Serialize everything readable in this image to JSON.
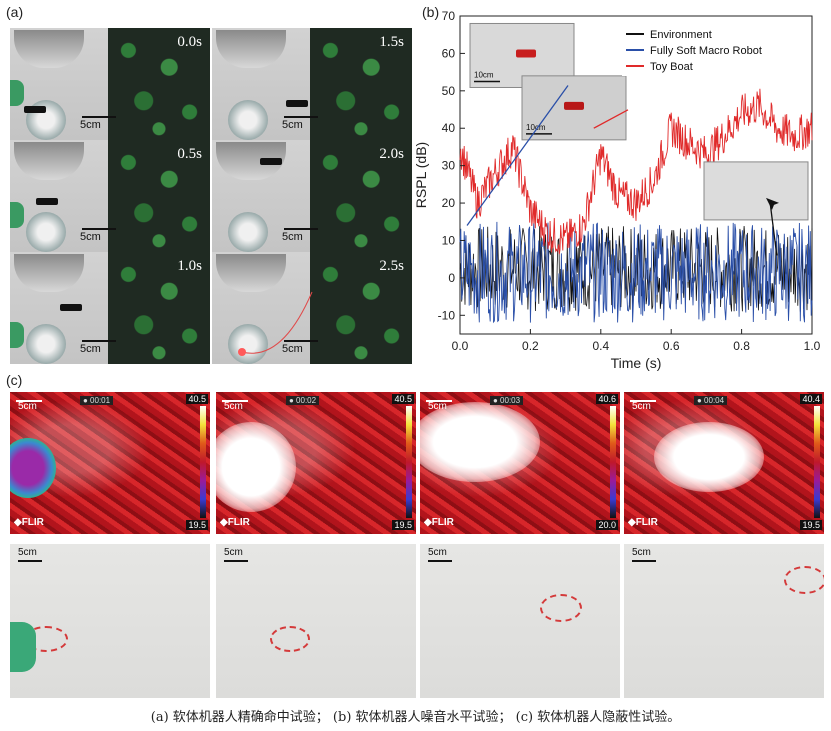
{
  "panel_labels": {
    "a": "(a)",
    "b": "(b)",
    "c": "(c)"
  },
  "panel_a": {
    "scale_label": "5cm",
    "times": [
      "0.0s",
      "1.5s",
      "0.5s",
      "2.0s",
      "1.0s",
      "2.5s"
    ]
  },
  "panel_b": {
    "inset_scale_1": "10cm",
    "inset_scale_2": "10cm"
  },
  "chart_data": {
    "type": "line",
    "xlabel": "Time (s)",
    "ylabel": "RSPL (dB)",
    "xlim": [
      0.0,
      1.0
    ],
    "ylim": [
      -15,
      70
    ],
    "xticks": [
      "0.0",
      "0.2",
      "0.4",
      "0.6",
      "0.8",
      "1.0"
    ],
    "yticks": [
      "-10",
      "0",
      "10",
      "20",
      "30",
      "40",
      "50",
      "60",
      "70"
    ],
    "legend_position": "top-right",
    "series": [
      {
        "name": "Environment",
        "color": "#111111",
        "x": [
          0.0,
          0.1,
          0.2,
          0.3,
          0.4,
          0.5,
          0.6,
          0.7,
          0.8,
          0.9,
          1.0
        ],
        "y_mean": [
          2,
          2,
          2,
          2,
          2,
          2,
          2,
          2,
          2,
          2,
          2
        ],
        "y_min": -9,
        "y_max": 14
      },
      {
        "name": "Fully Soft Macro Robot",
        "color": "#2a4fa8",
        "x": [
          0.0,
          0.1,
          0.2,
          0.3,
          0.4,
          0.5,
          0.6,
          0.7,
          0.8,
          0.9,
          1.0
        ],
        "y_mean": [
          2,
          2,
          2,
          2,
          2,
          2,
          2,
          2,
          2,
          2,
          2
        ],
        "y_min": -12,
        "y_max": 15
      },
      {
        "name": "Toy Boat",
        "color": "#e02a2a",
        "x": [
          0.0,
          0.05,
          0.1,
          0.15,
          0.2,
          0.25,
          0.3,
          0.35,
          0.4,
          0.45,
          0.5,
          0.55,
          0.6,
          0.65,
          0.7,
          0.75,
          0.8,
          0.85,
          0.9,
          0.95,
          1.0
        ],
        "y": [
          35,
          20,
          28,
          35,
          18,
          12,
          10,
          14,
          33,
          22,
          20,
          26,
          40,
          36,
          33,
          38,
          44,
          46,
          40,
          38,
          40
        ]
      }
    ]
  },
  "panel_c": {
    "scale_label": "5cm",
    "flir_label": "FLIR",
    "timestamps": [
      "00:01",
      "00:02",
      "00:03",
      "00:04"
    ],
    "tmax": [
      "40.5",
      "40.5",
      "40.6",
      "40.4"
    ],
    "tmin": [
      "19.5",
      "19.5",
      "20.0",
      "19.5"
    ]
  },
  "caption": "(a) 软体机器人精确命中试验；  (b) 软体机器人噪音水平试验；  (c) 软体机器人隐蔽性试验。"
}
